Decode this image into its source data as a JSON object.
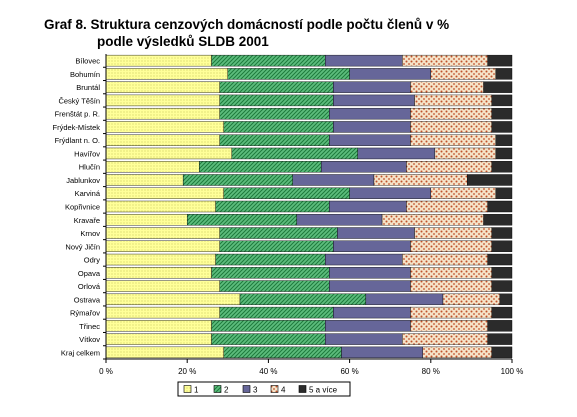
{
  "title_line1": "Graf 8. Struktura cenzových domácností podle počtu členů v %",
  "title_line2": "podle výsledků SLDB 2001",
  "chart_data": {
    "type": "bar",
    "orientation": "horizontal",
    "stacked": true,
    "title": "Graf 8. Struktura cenzových domácností podle počtu členů v % podle výsledků SLDB 2001",
    "categories": [
      "Bílovec",
      "Bohumín",
      "Bruntál",
      "Český Těšín",
      "Frenštát p. R.",
      "Frýdek-Místek",
      "Frýdlant n. O.",
      "Havířov",
      "Hlučín",
      "Jablunkov",
      "Karviná",
      "Kopřivnice",
      "Kravaře",
      "Krnov",
      "Nový Jičín",
      "Odry",
      "Opava",
      "Orlová",
      "Ostrava",
      "Rýmařov",
      "Třinec",
      "Vítkov",
      "Kraj celkem"
    ],
    "category_labels": [
      "Bílovec",
      "Bohumín",
      "Bruntál",
      "Český Těšín",
      "Frenštát p. R.",
      "Frýdek-Místek",
      "Frýdlant n. O.",
      "Havířov",
      "Hlučín",
      "Jablunkov",
      "Karviná",
      "Kopřivnice",
      "Kravaře",
      "Krnov",
      "Nový Jičín",
      "Odry",
      "Opava",
      "Orlová",
      "Ostrava",
      "Rýmařov",
      "Třinec",
      "Vítkov",
      "Kraj celkem"
    ],
    "series": [
      {
        "name": "1",
        "color": "#ffff99",
        "pattern": "dots",
        "values": [
          26,
          30,
          28,
          28,
          28,
          29,
          28,
          31,
          23,
          19,
          29,
          27,
          20,
          28,
          28,
          27,
          26,
          28,
          33,
          28,
          26,
          26,
          29
        ]
      },
      {
        "name": "2",
        "color": "#3cb371",
        "pattern": "hatch",
        "values": [
          28,
          30,
          28,
          28,
          27,
          27,
          27,
          31,
          30,
          27,
          31,
          28,
          27,
          29,
          28,
          27,
          29,
          27,
          31,
          28,
          28,
          28,
          29
        ]
      },
      {
        "name": "3",
        "color": "#666699",
        "pattern": "solid",
        "values": [
          19,
          20,
          19,
          20,
          20,
          19,
          20,
          19,
          21,
          20,
          20,
          19,
          21,
          19,
          19,
          19,
          20,
          20,
          19,
          19,
          21,
          19,
          20
        ]
      },
      {
        "name": "4",
        "color": "#cc6633",
        "pattern": "spots",
        "values": [
          21,
          16,
          18,
          19,
          20,
          20,
          21,
          15,
          21,
          23,
          16,
          20,
          25,
          19,
          20,
          21,
          20,
          20,
          14,
          20,
          19,
          21,
          17
        ]
      },
      {
        "name": "5 a více",
        "color": "#2b2b2b",
        "pattern": "solid",
        "values": [
          6,
          4,
          7,
          5,
          5,
          5,
          4,
          4,
          5,
          11,
          4,
          6,
          7,
          5,
          5,
          6,
          5,
          5,
          3,
          5,
          6,
          6,
          5
        ]
      }
    ],
    "xlim": [
      0,
      100
    ],
    "x_ticks": [
      "0 %",
      "20 %",
      "40 %",
      "60 %",
      "80 %",
      "100 %"
    ],
    "xlabel": "",
    "ylabel": "",
    "legend": [
      "1",
      "2",
      "3",
      "4",
      "5 a více"
    ],
    "legend_position": "bottom",
    "grid": false
  }
}
